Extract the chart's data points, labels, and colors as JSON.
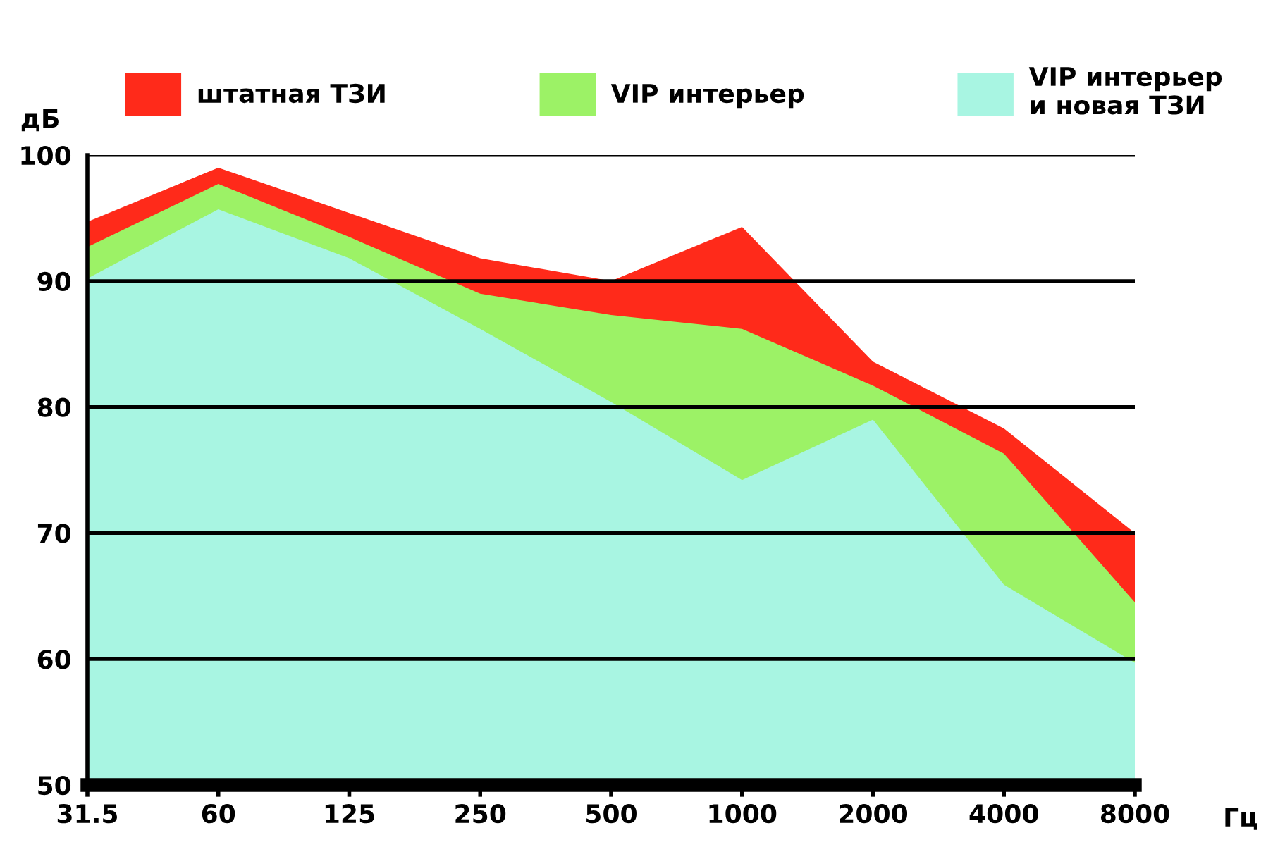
{
  "chart_data": {
    "type": "area",
    "xlabel": "Гц",
    "ylabel": "дБ",
    "categories": [
      "31.5",
      "60",
      "125",
      "250",
      "500",
      "1000",
      "2000",
      "4000",
      "8000"
    ],
    "series": [
      {
        "name": "штатная ТЗИ",
        "color": "#ff2a1a",
        "values": [
          94.7,
          99,
          95.4,
          91.8,
          90,
          94.3,
          83.6,
          78.3,
          70
        ]
      },
      {
        "name": "VIP интерьер",
        "color": "#9cf266",
        "values": [
          92.7,
          97.7,
          93.5,
          89,
          87.3,
          86.2,
          81.7,
          76.3,
          64.5
        ]
      },
      {
        "name": "VIP интерьер\nи новая ТЗИ",
        "color": "#a8f5e2",
        "values": [
          90.2,
          95.7,
          91.8,
          86.2,
          80.4,
          74.2,
          79,
          65.9,
          59.7
        ]
      }
    ],
    "ylim": [
      50,
      100
    ],
    "yticks": [
      50,
      60,
      70,
      80,
      90,
      100
    ],
    "grid": "y",
    "legend": "top"
  }
}
